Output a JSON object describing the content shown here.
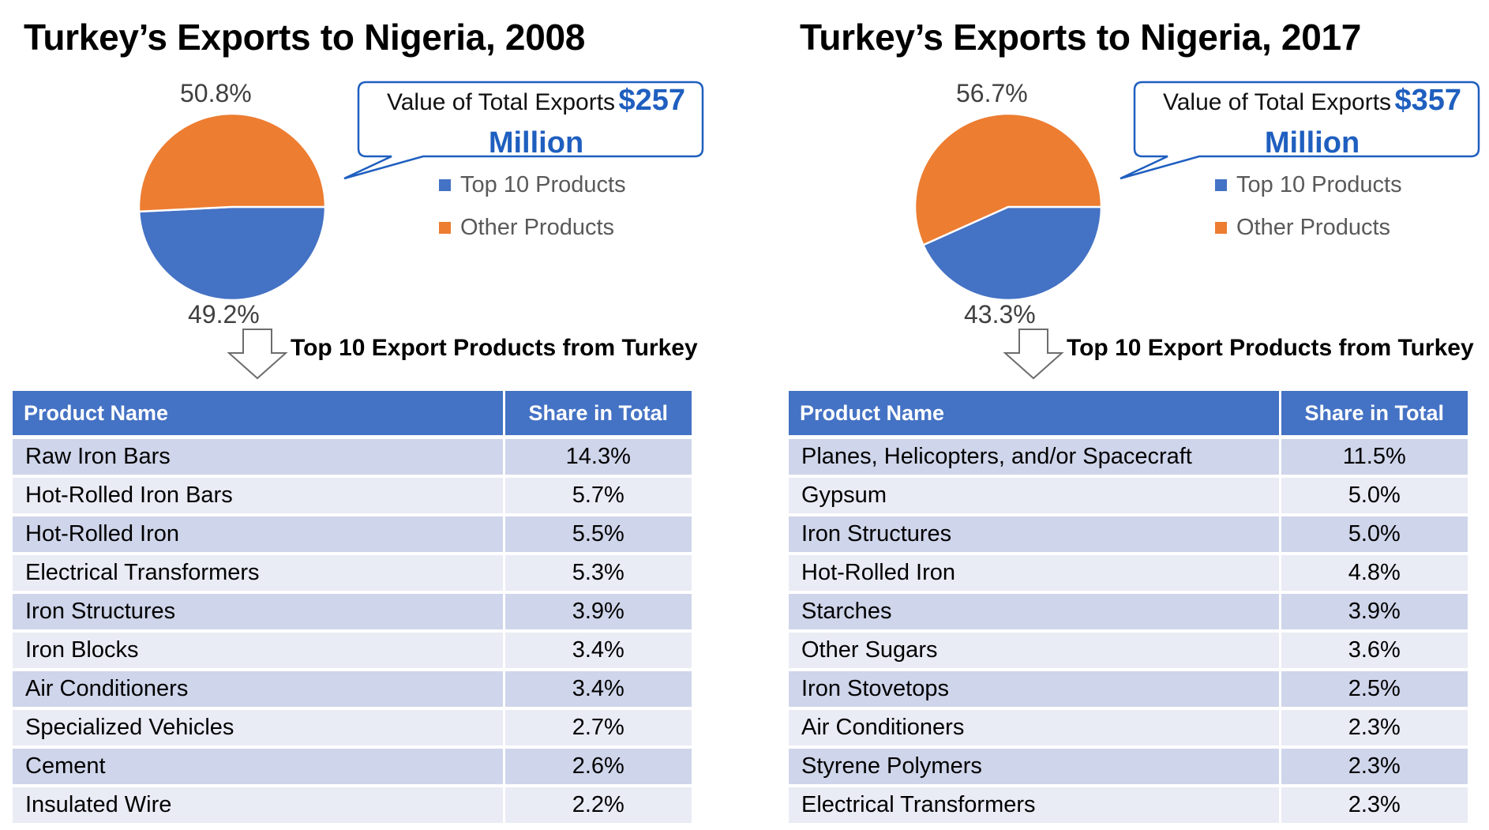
{
  "colors": {
    "top10": "#4472c4",
    "other": "#ed7d31",
    "accent": "#1f5fbf"
  },
  "chart_data": [
    {
      "type": "pie",
      "title": "Turkey’s Exports to Nigeria, 2008",
      "slices": [
        {
          "label": "Top 10 Products",
          "value": 49.2,
          "display": "49.2%"
        },
        {
          "label": "Other Products",
          "value": 50.8,
          "display": "50.8%"
        }
      ],
      "legend": [
        "Top 10 Products",
        "Other Products"
      ],
      "legend_position": "right",
      "callout": {
        "label": "Value of Total Exports",
        "value": "$257",
        "unit": "Million"
      },
      "table": {
        "caption": "Top 10 Export Products from Turkey",
        "columns": [
          "Product Name",
          "Share in Total"
        ],
        "rows": [
          [
            "Raw Iron Bars",
            "14.3%"
          ],
          [
            "Hot-Rolled Iron Bars",
            "5.7%"
          ],
          [
            "Hot-Rolled Iron",
            "5.5%"
          ],
          [
            "Electrical Transformers",
            "5.3%"
          ],
          [
            "Iron Structures",
            "3.9%"
          ],
          [
            "Iron Blocks",
            "3.4%"
          ],
          [
            "Air Conditioners",
            "3.4%"
          ],
          [
            "Specialized Vehicles",
            "2.7%"
          ],
          [
            "Cement",
            "2.6%"
          ],
          [
            "Insulated Wire",
            "2.2%"
          ]
        ]
      }
    },
    {
      "type": "pie",
      "title": "Turkey’s Exports to Nigeria, 2017",
      "slices": [
        {
          "label": "Top 10 Products",
          "value": 43.3,
          "display": "43.3%"
        },
        {
          "label": "Other Products",
          "value": 56.7,
          "display": "56.7%"
        }
      ],
      "legend": [
        "Top 10 Products",
        "Other Products"
      ],
      "legend_position": "right",
      "callout": {
        "label": "Value of Total Exports",
        "value": "$357",
        "unit": "Million"
      },
      "table": {
        "caption": "Top 10 Export Products from Turkey",
        "columns": [
          "Product Name",
          "Share in Total"
        ],
        "rows": [
          [
            "Planes, Helicopters, and/or Spacecraft",
            "11.5%"
          ],
          [
            "Gypsum",
            "5.0%"
          ],
          [
            "Iron Structures",
            "5.0%"
          ],
          [
            "Hot-Rolled Iron",
            "4.8%"
          ],
          [
            "Starches",
            "3.9%"
          ],
          [
            "Other Sugars",
            "3.6%"
          ],
          [
            "Iron Stovetops",
            "2.5%"
          ],
          [
            "Air Conditioners",
            "2.3%"
          ],
          [
            "Styrene Polymers",
            "2.3%"
          ],
          [
            "Electrical Transformers",
            "2.3%"
          ]
        ]
      }
    }
  ]
}
